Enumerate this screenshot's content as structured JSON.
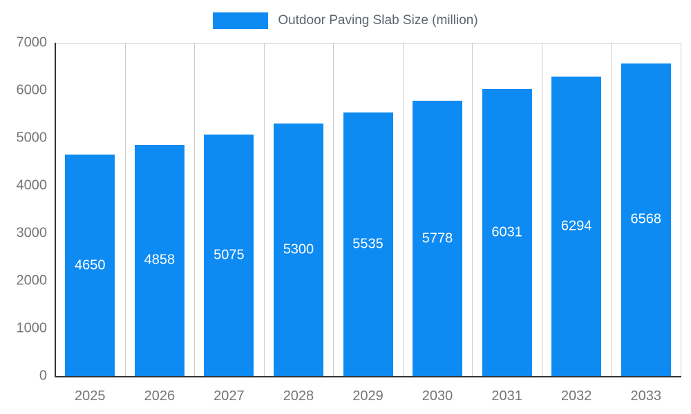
{
  "chart_data": {
    "type": "bar",
    "title": "Outdoor Paving Slab Size (million)",
    "categories": [
      "2025",
      "2026",
      "2027",
      "2028",
      "2029",
      "2030",
      "2031",
      "2032",
      "2033"
    ],
    "values": [
      4650,
      4858,
      5075,
      5300,
      5535,
      5778,
      6031,
      6294,
      6568
    ],
    "xlabel": "",
    "ylabel": "",
    "ylim": [
      0,
      7000
    ],
    "y_tick_step": 1000,
    "y_tick_labels": [
      "0",
      "1000",
      "2000",
      "3000",
      "4000",
      "5000",
      "6000",
      "7000"
    ],
    "bar_color": "#0d8bf2",
    "value_label_color": "#ffffff",
    "grid_color": "#cccccc",
    "axis_color": "#333333",
    "tick_label_color": "#757575",
    "legend_position": "top-center",
    "grid": "vertical-category-boundaries"
  }
}
